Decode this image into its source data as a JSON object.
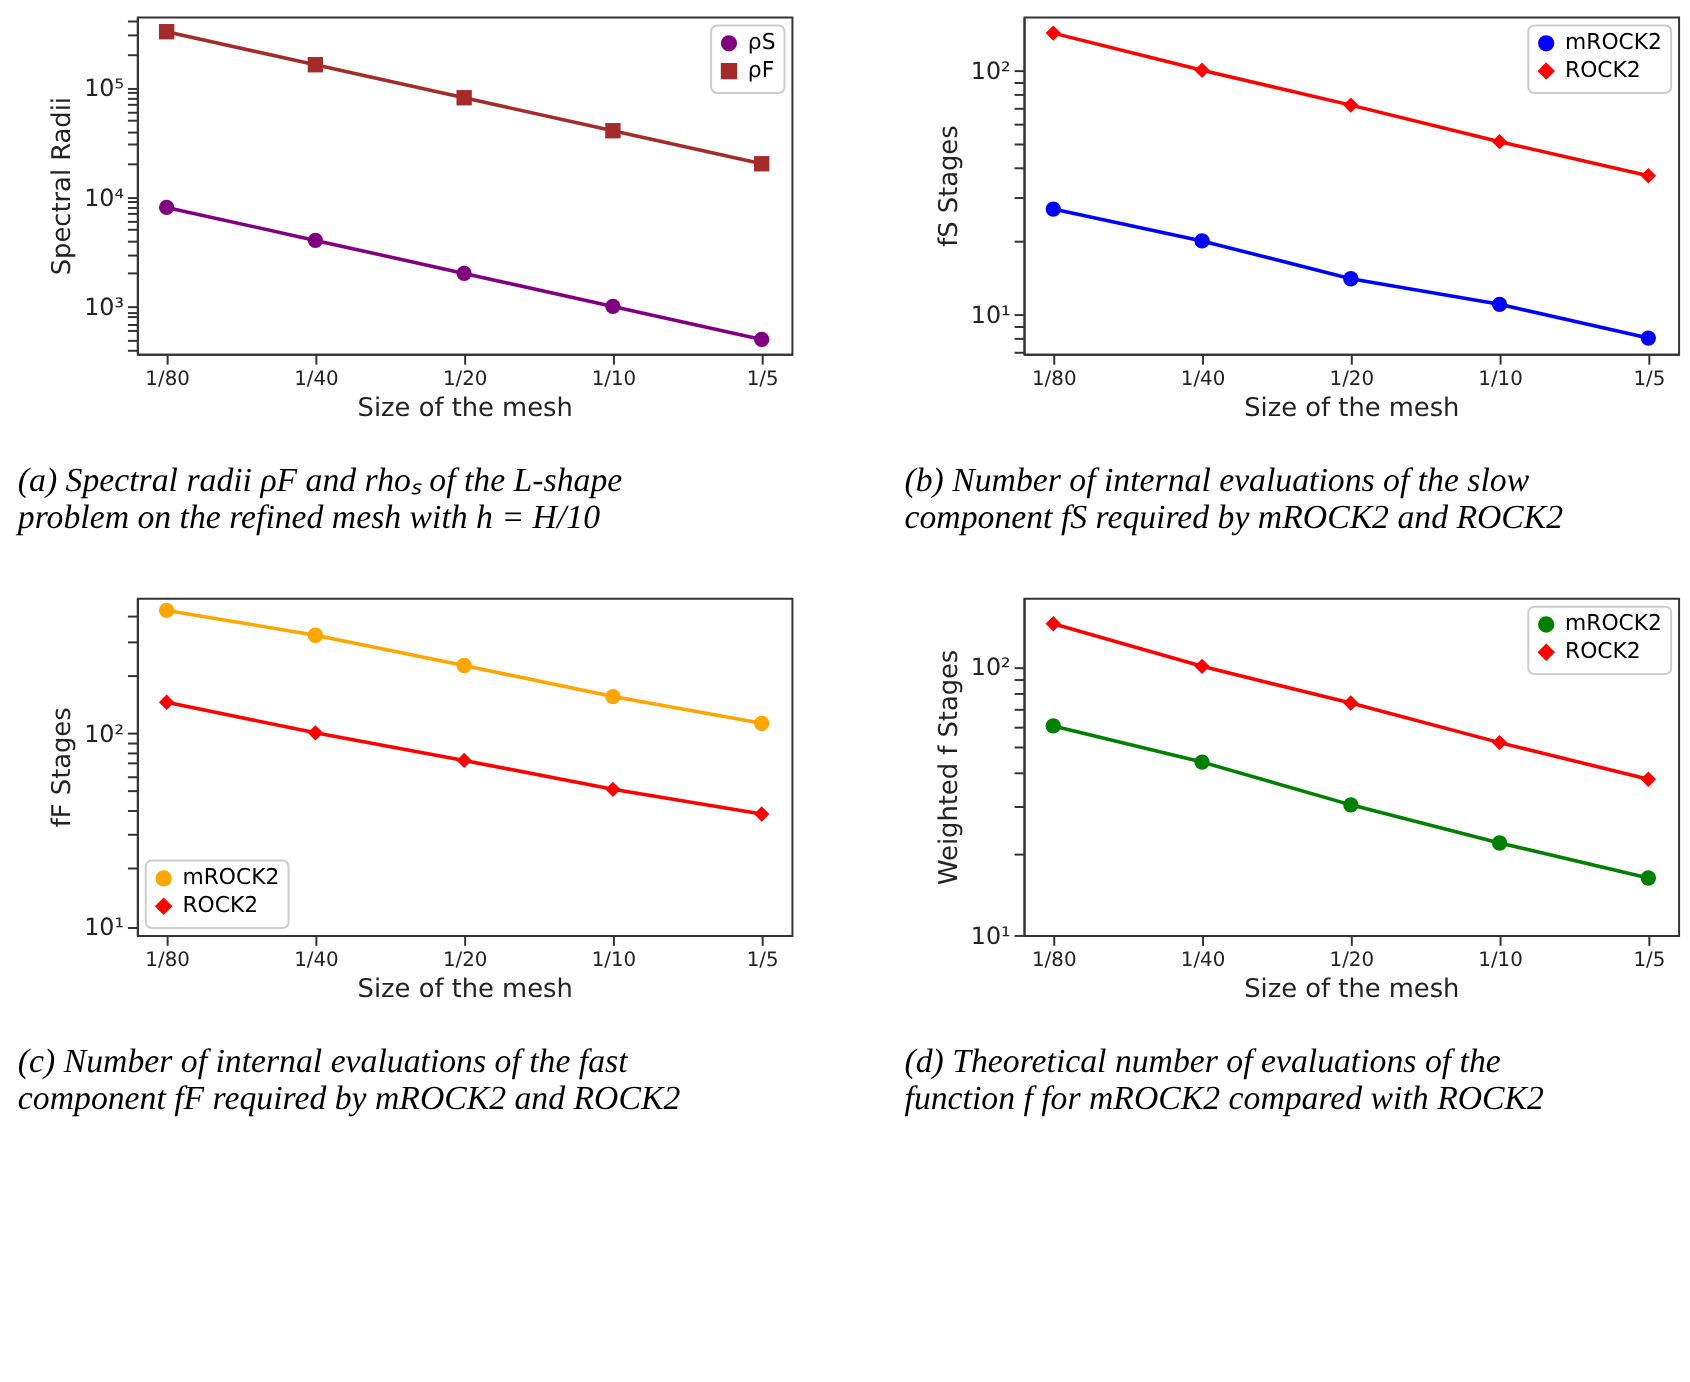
{
  "chart_data": [
    {
      "type": "line",
      "categories": [
        "1/80",
        "1/40",
        "1/20",
        "1/10",
        "1/5"
      ],
      "xlabel": "Size of the mesh",
      "ylabel": "Spectral Radii",
      "log": true,
      "grid": false,
      "legend": "top right",
      "ylim": [
        370,
        440000
      ],
      "yticks": [
        {
          "value": 400,
          "label": null
        },
        {
          "value": 500,
          "label": null
        },
        {
          "value": 600,
          "label": null
        },
        {
          "value": 700,
          "label": null
        },
        {
          "value": 800,
          "label": null
        },
        {
          "value": 900,
          "label": null
        },
        {
          "value": 1000,
          "label": "10³"
        },
        {
          "value": 2000,
          "label": null
        },
        {
          "value": 3000,
          "label": null
        },
        {
          "value": 4000,
          "label": null
        },
        {
          "value": 5000,
          "label": null
        },
        {
          "value": 6000,
          "label": null
        },
        {
          "value": 7000,
          "label": null
        },
        {
          "value": 8000,
          "label": null
        },
        {
          "value": 9000,
          "label": null
        },
        {
          "value": 10000,
          "label": "10⁴"
        },
        {
          "value": 20000,
          "label": null
        },
        {
          "value": 30000,
          "label": null
        },
        {
          "value": 40000,
          "label": null
        },
        {
          "value": 50000,
          "label": null
        },
        {
          "value": 60000,
          "label": null
        },
        {
          "value": 70000,
          "label": null
        },
        {
          "value": 80000,
          "label": null
        },
        {
          "value": 90000,
          "label": null
        },
        {
          "value": 100000,
          "label": "10⁵"
        },
        {
          "value": 200000,
          "label": null
        },
        {
          "value": 300000,
          "label": null
        },
        {
          "value": 400000,
          "label": null
        }
      ],
      "series": [
        {
          "name": "ρS",
          "color": "#800080",
          "marker": "circle",
          "values": [
            8000,
            4000,
            2000,
            1000,
            500
          ]
        },
        {
          "name": "ρF",
          "color": "#a52a2a",
          "marker": "square",
          "values": [
            320000,
            160000,
            80000,
            40000,
            20000
          ]
        }
      ],
      "annotations": [
        "(a) Spectral radii ρF and rhoₛ of the L-shape problem on the refined mesh with h = H/10"
      ]
    },
    {
      "type": "line",
      "categories": [
        "1/80",
        "1/40",
        "1/20",
        "1/10",
        "1/5"
      ],
      "xlabel": "Size of the mesh",
      "ylabel": "fS Stages",
      "log": true,
      "grid": false,
      "legend": "top right",
      "ylim": [
        6.9,
        166
      ],
      "yticks": [
        {
          "value": 7,
          "label": null
        },
        {
          "value": 8,
          "label": null
        },
        {
          "value": 9,
          "label": null
        },
        {
          "value": 10,
          "label": "10¹"
        },
        {
          "value": 20,
          "label": null
        },
        {
          "value": 30,
          "label": null
        },
        {
          "value": 40,
          "label": null
        },
        {
          "value": 50,
          "label": null
        },
        {
          "value": 60,
          "label": null
        },
        {
          "value": 70,
          "label": null
        },
        {
          "value": 80,
          "label": null
        },
        {
          "value": 90,
          "label": null
        },
        {
          "value": 100,
          "label": "10²"
        }
      ],
      "series": [
        {
          "name": "mROCK2",
          "color": "#0000ff",
          "marker": "circle",
          "values": [
            27,
            20,
            14,
            11,
            8
          ]
        },
        {
          "name": "ROCK2",
          "color": "#ff0000",
          "marker": "diamond",
          "values": [
            142,
            100,
            72,
            51,
            37
          ]
        }
      ],
      "annotations": [
        "(b) Number of internal evaluations of the slow component fS required by mROCK2 and ROCK2"
      ]
    },
    {
      "type": "line",
      "categories": [
        "1/80",
        "1/40",
        "1/20",
        "1/10",
        "1/5"
      ],
      "xlabel": "Size of the mesh",
      "ylabel": "fF Stages",
      "log": true,
      "grid": false,
      "legend": "bottom left",
      "ylim": [
        9,
        500
      ],
      "yticks": [
        {
          "value": 10,
          "label": "10¹"
        },
        {
          "value": 20,
          "label": null
        },
        {
          "value": 30,
          "label": null
        },
        {
          "value": 40,
          "label": null
        },
        {
          "value": 50,
          "label": null
        },
        {
          "value": 60,
          "label": null
        },
        {
          "value": 70,
          "label": null
        },
        {
          "value": 80,
          "label": null
        },
        {
          "value": 90,
          "label": null
        },
        {
          "value": 100,
          "label": "10²"
        },
        {
          "value": 200,
          "label": null
        },
        {
          "value": 300,
          "label": null
        },
        {
          "value": 400,
          "label": null
        }
      ],
      "series": [
        {
          "name": "mROCK2",
          "color": "#ffa500",
          "marker": "circle",
          "values": [
            430,
            320,
            223,
            154,
            112
          ]
        },
        {
          "name": "ROCK2",
          "color": "#ff0000",
          "marker": "diamond",
          "values": [
            144,
            100,
            72,
            51,
            38
          ]
        }
      ],
      "annotations": [
        "(c) Number of internal evaluations of the fast component fF required by mROCK2 and ROCK2"
      ]
    },
    {
      "type": "line",
      "categories": [
        "1/80",
        "1/40",
        "1/20",
        "1/10",
        "1/5"
      ],
      "xlabel": "Size of the mesh",
      "ylabel": "Weighted f Stages",
      "log": true,
      "grid": false,
      "legend": "top right",
      "ylim": [
        10,
        180
      ],
      "yticks": [
        {
          "value": 10,
          "label": "10¹"
        },
        {
          "value": 20,
          "label": null
        },
        {
          "value": 30,
          "label": null
        },
        {
          "value": 40,
          "label": null
        },
        {
          "value": 50,
          "label": null
        },
        {
          "value": 60,
          "label": null
        },
        {
          "value": 70,
          "label": null
        },
        {
          "value": 80,
          "label": null
        },
        {
          "value": 90,
          "label": null
        },
        {
          "value": 100,
          "label": "10²"
        }
      ],
      "series": [
        {
          "name": "mROCK2",
          "color": "#008000",
          "marker": "circle",
          "values": [
            60,
            44,
            30.5,
            22,
            16.3
          ]
        },
        {
          "name": "ROCK2",
          "color": "#ff0000",
          "marker": "diamond",
          "values": [
            144,
            100,
            73,
            52,
            38
          ]
        }
      ],
      "annotations": [
        "(d) Theoretical number of evaluations of the function f for mROCK2 compared with ROCK2"
      ]
    }
  ]
}
